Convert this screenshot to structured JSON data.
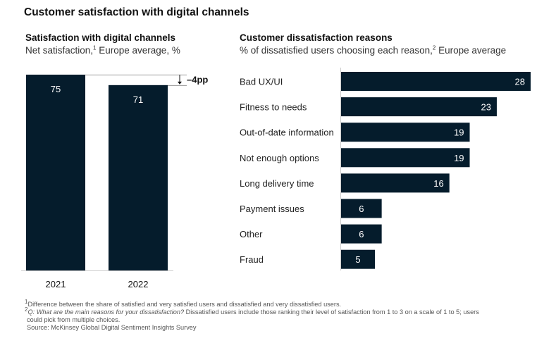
{
  "page": {
    "title": "Customer satisfaction with digital channels",
    "footnotes": {
      "note1_marker": "1",
      "note1": "Difference between the share of satisfied and very satisfied users and dissatisfied and very dissatisfied users.",
      "note2_marker": "2",
      "note2_italic": "Q: What are the main reasons for your dissatisfaction?",
      "note2_rest": " Dissatisfied users include those ranking their level of satisfaction from 1 to 3 on a scale of 1 to 5; users",
      "note2_cont": "could pick from multiple choices.",
      "source": "Source: McKinsey Global Digital Sentiment Insights Survey"
    }
  },
  "chart_data": [
    {
      "type": "bar",
      "orientation": "vertical",
      "title": "Satisfaction with digital channels",
      "subtitle": "Net satisfaction,",
      "subtitle_marker": "1",
      "subtitle_rest": " Europe average, %",
      "categories": [
        "2021",
        "2022"
      ],
      "values": [
        75,
        71
      ],
      "data_labels": [
        "75",
        "71"
      ],
      "annotation": "–4pp",
      "bar_color": "#051c2c",
      "ylim": [
        0,
        75
      ],
      "grid": false,
      "xlabel": "",
      "ylabel": ""
    },
    {
      "type": "bar",
      "orientation": "horizontal",
      "title": "Customer dissatisfaction reasons",
      "subtitle": "% of dissatisfied users choosing each reason,",
      "subtitle_marker": "2",
      "subtitle_rest": " Europe average",
      "categories": [
        "Bad UX/UI",
        "Fitness to needs",
        "Out-of-date information",
        "Not enough options",
        "Long delivery time",
        "Payment issues",
        "Other",
        "Fraud"
      ],
      "values": [
        28,
        23,
        19,
        19,
        16,
        6,
        6,
        5
      ],
      "data_labels": [
        "28",
        "23",
        "19",
        "19",
        "16",
        "6",
        "6",
        "5"
      ],
      "bar_color": "#051c2c",
      "xlim": [
        0,
        28
      ],
      "grid": false,
      "xlabel": "",
      "ylabel": ""
    }
  ]
}
